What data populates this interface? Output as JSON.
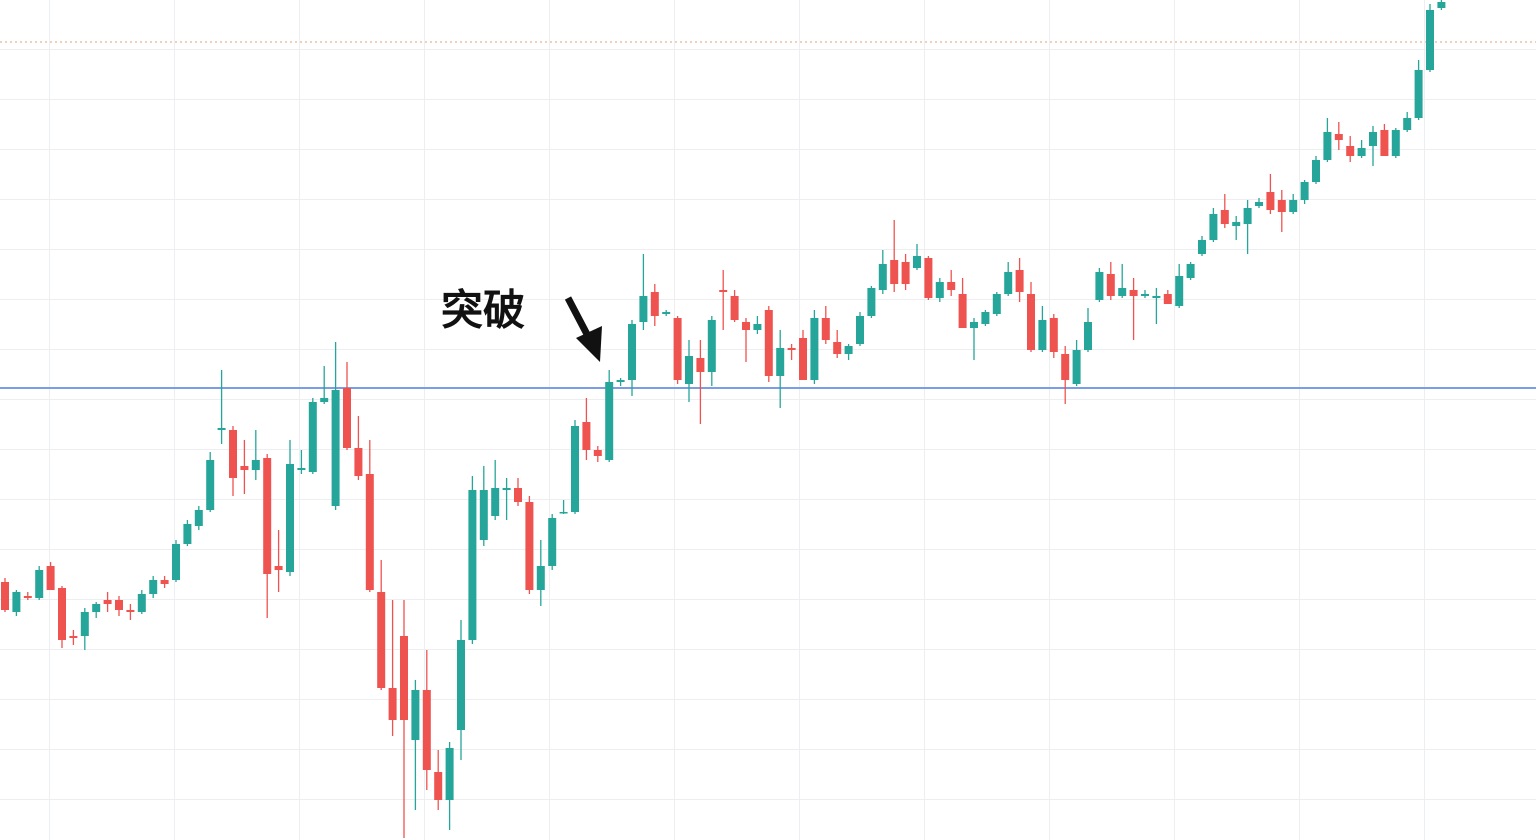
{
  "chart_data": {
    "type": "candlestick",
    "annotation": "突破",
    "up_color": "#26a69a",
    "down_color": "#ef5350",
    "ylim": [
      0,
      840
    ],
    "levels": [
      {
        "value": 452,
        "color": "#7b9ce6",
        "style": "solid"
      },
      {
        "value": 798,
        "color": "#e0a070",
        "style": "dotted"
      }
    ],
    "open": [
      258,
      228,
      244,
      242,
      274,
      252,
      204,
      204,
      228,
      240,
      240,
      230,
      228,
      246,
      260,
      260,
      296,
      314,
      330,
      410,
      410,
      374,
      370,
      382,
      274,
      268,
      370,
      368,
      438,
      334,
      452,
      392,
      366,
      248,
      152,
      204,
      100,
      150,
      68,
      40,
      110,
      200,
      300,
      324,
      350,
      352,
      338,
      250,
      274,
      328,
      328,
      418,
      390,
      380,
      458,
      460,
      518,
      548,
      526,
      522,
      456,
      482,
      468,
      550,
      544,
      518,
      510,
      530,
      464,
      492,
      502,
      460,
      522,
      498,
      486,
      496,
      524,
      550,
      580,
      578,
      572,
      582,
      542,
      558,
      546,
      512,
      516,
      526,
      546,
      570,
      546,
      490,
      522,
      486,
      456,
      490,
      540,
      566,
      544,
      550,
      544,
      542,
      546,
      534,
      562,
      586,
      600,
      630,
      614,
      616,
      634,
      648,
      640,
      628,
      640,
      658,
      680,
      706,
      694,
      684,
      694,
      710,
      684,
      710,
      722,
      770,
      832
    ],
    "high": [
      262,
      250,
      248,
      274,
      278,
      254,
      210,
      232,
      238,
      248,
      244,
      236,
      250,
      264,
      264,
      300,
      320,
      334,
      388,
      470,
      414,
      400,
      410,
      386,
      310,
      400,
      390,
      442,
      474,
      498,
      478,
      424,
      400,
      280,
      240,
      240,
      160,
      190,
      90,
      98,
      220,
      364,
      374,
      380,
      362,
      362,
      344,
      300,
      326,
      340,
      420,
      442,
      394,
      470,
      462,
      520,
      586,
      556,
      530,
      524,
      500,
      500,
      524,
      570,
      550,
      522,
      524,
      534,
      510,
      496,
      510,
      530,
      534,
      510,
      496,
      528,
      554,
      590,
      620,
      586,
      596,
      584,
      562,
      570,
      562,
      522,
      530,
      548,
      578,
      582,
      558,
      534,
      526,
      494,
      500,
      532,
      572,
      578,
      576,
      562,
      550,
      552,
      550,
      576,
      578,
      604,
      632,
      646,
      624,
      640,
      642,
      666,
      650,
      646,
      660,
      684,
      722,
      718,
      704,
      700,
      714,
      716,
      712,
      728,
      780,
      836,
      840
    ],
    "low": [
      228,
      224,
      240,
      240,
      250,
      192,
      195,
      190,
      222,
      228,
      224,
      220,
      226,
      242,
      252,
      258,
      294,
      310,
      328,
      396,
      344,
      346,
      360,
      222,
      248,
      264,
      366,
      366,
      436,
      330,
      390,
      360,
      248,
      150,
      104,
      2,
      30,
      50,
      30,
      10,
      80,
      196,
      294,
      320,
      320,
      334,
      246,
      234,
      270,
      326,
      326,
      380,
      378,
      378,
      454,
      444,
      510,
      514,
      524,
      456,
      438,
      416,
      454,
      510,
      518,
      478,
      506,
      458,
      432,
      480,
      460,
      456,
      496,
      482,
      480,
      494,
      522,
      546,
      548,
      550,
      570,
      540,
      538,
      544,
      512,
      480,
      514,
      524,
      544,
      538,
      488,
      488,
      482,
      436,
      454,
      488,
      538,
      540,
      542,
      500,
      542,
      516,
      538,
      532,
      560,
      584,
      598,
      612,
      600,
      586,
      632,
      626,
      608,
      626,
      636,
      656,
      678,
      690,
      678,
      682,
      674,
      684,
      682,
      708,
      720,
      768,
      830
    ],
    "close": [
      230,
      248,
      242,
      270,
      250,
      200,
      202,
      228,
      236,
      236,
      230,
      228,
      246,
      260,
      256,
      296,
      316,
      330,
      380,
      412,
      362,
      370,
      380,
      266,
      270,
      376,
      372,
      438,
      442,
      450,
      392,
      364,
      250,
      152,
      120,
      120,
      150,
      70,
      40,
      92,
      200,
      350,
      350,
      352,
      352,
      338,
      250,
      274,
      322,
      328,
      414,
      390,
      384,
      458,
      460,
      516,
      544,
      524,
      528,
      460,
      484,
      468,
      520,
      548,
      520,
      510,
      516,
      464,
      492,
      490,
      460,
      522,
      500,
      486,
      494,
      524,
      552,
      576,
      556,
      556,
      584,
      542,
      558,
      550,
      512,
      518,
      528,
      546,
      568,
      548,
      490,
      520,
      488,
      460,
      490,
      518,
      568,
      544,
      552,
      544,
      546,
      544,
      536,
      564,
      576,
      600,
      626,
      616,
      618,
      632,
      638,
      630,
      628,
      640,
      658,
      680,
      708,
      700,
      684,
      692,
      708,
      684,
      710,
      722,
      770,
      830,
      838
    ]
  }
}
